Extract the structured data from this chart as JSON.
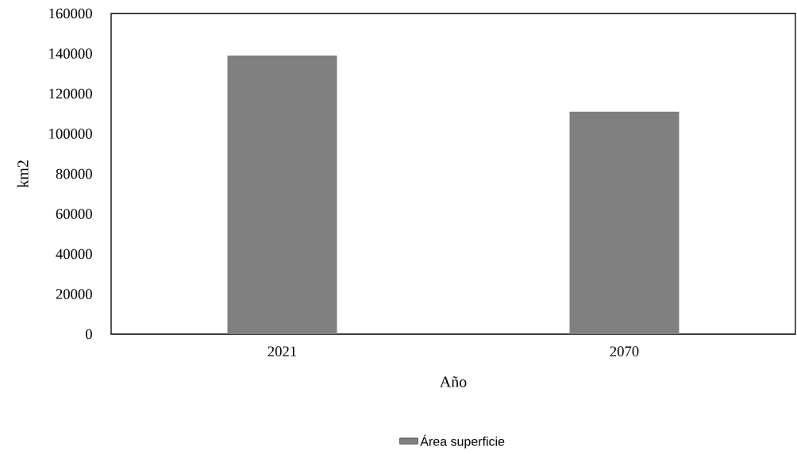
{
  "chart_data": {
    "type": "bar",
    "xlabel": "Año",
    "ylabel": "km2",
    "categories": [
      "2021",
      "2070"
    ],
    "series": [
      {
        "name": "Área superficie",
        "color": "#808080",
        "values": [
          139000,
          111000
        ]
      }
    ],
    "ylim": [
      0,
      160000
    ],
    "yticks": [
      0,
      20000,
      40000,
      60000,
      80000,
      100000,
      120000,
      140000,
      160000
    ],
    "grid": false,
    "legend": "bottom"
  }
}
